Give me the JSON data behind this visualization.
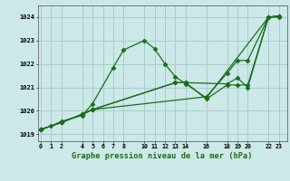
{
  "title": "Graphe pression niveau de la mer (hPa)",
  "bg_color": "#cce8e8",
  "grid_color": "#aacccc",
  "line_color": "#1a6e1a",
  "series": [
    {
      "x": [
        0,
        1,
        2,
        4,
        5,
        7,
        8,
        10,
        11,
        12,
        13,
        14,
        16,
        22,
        23
      ],
      "y": [
        1019.2,
        1019.35,
        1019.55,
        1019.8,
        1020.3,
        1021.85,
        1022.6,
        1023.0,
        1022.65,
        1022.0,
        1021.45,
        1021.15,
        1020.55,
        1024.0,
        1024.0
      ]
    },
    {
      "x": [
        0,
        2,
        4,
        5,
        16,
        18,
        19,
        20,
        22,
        23
      ],
      "y": [
        1019.2,
        1019.5,
        1019.85,
        1020.05,
        1020.6,
        1021.6,
        1022.15,
        1022.15,
        1024.0,
        1024.05
      ]
    },
    {
      "x": [
        0,
        2,
        4,
        5,
        13,
        14,
        18,
        19,
        20,
        22,
        23
      ],
      "y": [
        1019.2,
        1019.5,
        1019.85,
        1020.05,
        1021.2,
        1021.2,
        1021.15,
        1021.4,
        1021.0,
        1024.0,
        1024.05
      ]
    },
    {
      "x": [
        0,
        2,
        4,
        5,
        13,
        14,
        16,
        18,
        19,
        20,
        22,
        23
      ],
      "y": [
        1019.2,
        1019.5,
        1019.85,
        1020.05,
        1021.2,
        1021.2,
        1020.5,
        1021.1,
        1021.1,
        1021.1,
        1024.0,
        1024.05
      ]
    }
  ],
  "xtick_positions": [
    0,
    1,
    2,
    4,
    5,
    6,
    7,
    8,
    10,
    11,
    12,
    13,
    14,
    16,
    18,
    19,
    20,
    22,
    23
  ],
  "xtick_labels": [
    "0",
    "1",
    "2",
    "4",
    "5",
    "6",
    "7",
    "8",
    "10",
    "11",
    "12",
    "13",
    "14",
    "16",
    "18",
    "19",
    "20",
    "22",
    "23"
  ],
  "yticks": [
    1019,
    1020,
    1021,
    1022,
    1023,
    1024
  ],
  "xlim": [
    -0.3,
    23.8
  ],
  "ylim": [
    1018.7,
    1024.5
  ],
  "marker": "D",
  "markersize": 2.5,
  "linewidth": 0.9
}
